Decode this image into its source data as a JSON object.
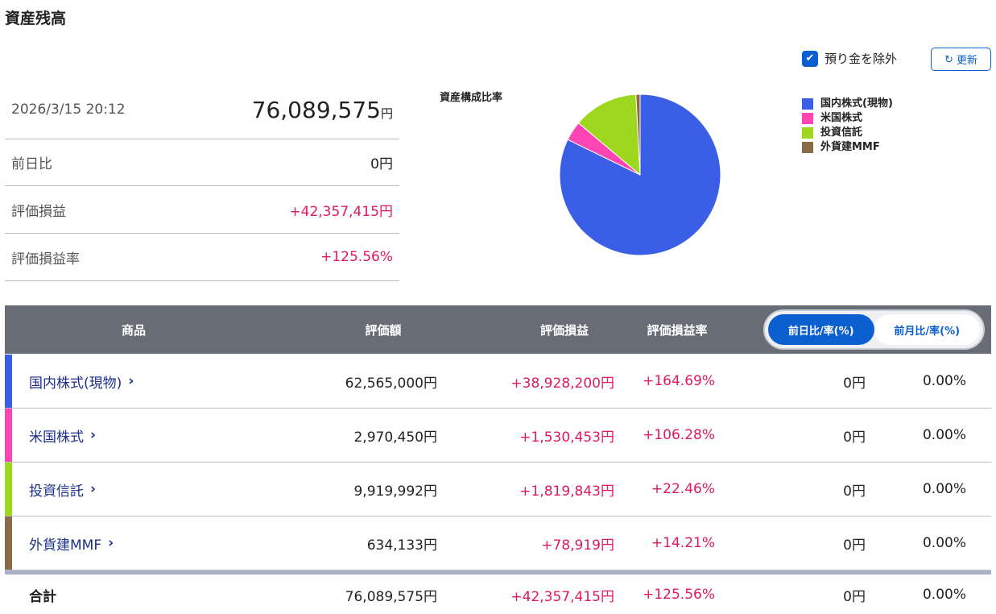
{
  "page": {
    "title": "資産残高"
  },
  "options": {
    "exclude_deposit_label": "預り金を除外",
    "exclude_deposit_checked": true,
    "refresh_label": "更新"
  },
  "summary": {
    "datetime": "2026/3/15 20:12",
    "total": "76,089,575",
    "yen": "円",
    "rows": [
      {
        "label": "前日比",
        "value": "0円"
      },
      {
        "label": "評価損益",
        "value": "+42,357,415円"
      },
      {
        "label": "評価損益率",
        "value": "+125.56%"
      }
    ]
  },
  "chart_data": {
    "type": "pie",
    "title": "資産構成比率",
    "legend_position": "right",
    "categories": [
      "国内株式(現物)",
      "米国株式",
      "投資信託",
      "外貨建MMF"
    ],
    "values": [
      62565000,
      2970450,
      9919992,
      634133
    ],
    "colors": [
      "#3b5ee6",
      "#ff44b4",
      "#9ed81e",
      "#8b6a48"
    ]
  },
  "table": {
    "headers": {
      "product": "商品",
      "value": "評価額",
      "pnl": "評価損益",
      "rate": "評価損益率"
    },
    "toggle": {
      "daily": "前日比/率(%)",
      "monthly": "前月比/率(%)",
      "active": "daily"
    },
    "rows": [
      {
        "name": "国内株式(現物)",
        "value": "62,565,000円",
        "pnl": "+38,928,200円",
        "rate": "+164.69%",
        "diff": "0円",
        "diff_rate": "0.00%",
        "color": "#3b5ee6"
      },
      {
        "name": "米国株式",
        "value": "2,970,450円",
        "pnl": "+1,530,453円",
        "rate": "+106.28%",
        "diff": "0円",
        "diff_rate": "0.00%",
        "color": "#ff44b4"
      },
      {
        "name": "投資信託",
        "value": "9,919,992円",
        "pnl": "+1,819,843円",
        "rate": "+22.46%",
        "diff": "0円",
        "diff_rate": "0.00%",
        "color": "#9ed81e"
      },
      {
        "name": "外貨建MMF",
        "value": "634,133円",
        "pnl": "+78,919円",
        "rate": "+14.21%",
        "diff": "0円",
        "diff_rate": "0.00%",
        "color": "#8b6a48"
      }
    ],
    "total": {
      "name": "合計",
      "value": "76,089,575円",
      "pnl": "+42,357,415円",
      "rate": "+125.56%",
      "diff": "0円",
      "diff_rate": "0.00%"
    }
  }
}
